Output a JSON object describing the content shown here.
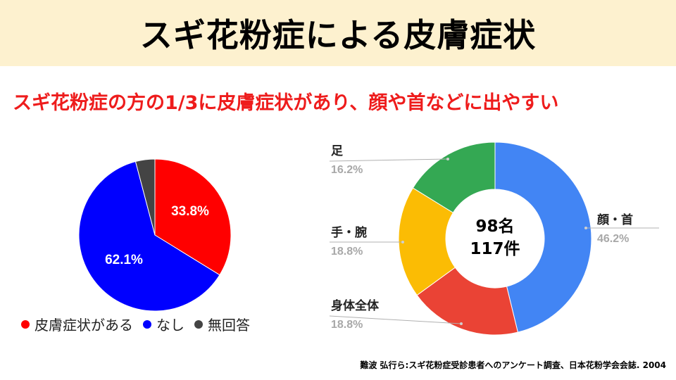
{
  "title": "スギ花粉症による皮膚症状",
  "subtitle": "スギ花粉症の方の1/3に皮膚症状があり、顔や首などに出やすい",
  "source": "難波 弘行ら:スギ花粉症受診患者へのアンケート調査、日本花粉学会会誌. 2004",
  "chart_data": [
    {
      "type": "pie",
      "labels": [
        "皮膚症状がある",
        "なし",
        "無回答"
      ],
      "values": [
        33.8,
        62.1,
        4.1
      ],
      "value_labels": [
        "33.8%",
        "62.1%",
        ""
      ],
      "colors": [
        "#ff0000",
        "#0000ff",
        "#444444"
      ],
      "legend_position": "bottom"
    },
    {
      "type": "pie",
      "variant": "donut",
      "labels": [
        "顔・首",
        "身体全体",
        "手・腕",
        "足"
      ],
      "values": [
        46.2,
        18.8,
        18.8,
        16.2
      ],
      "value_labels": [
        "46.2%",
        "18.8%",
        "18.8%",
        "16.2%"
      ],
      "colors": [
        "#4285f4",
        "#ea4335",
        "#fbbc04",
        "#34a853"
      ],
      "center_text": [
        "98名",
        "117件"
      ]
    }
  ]
}
